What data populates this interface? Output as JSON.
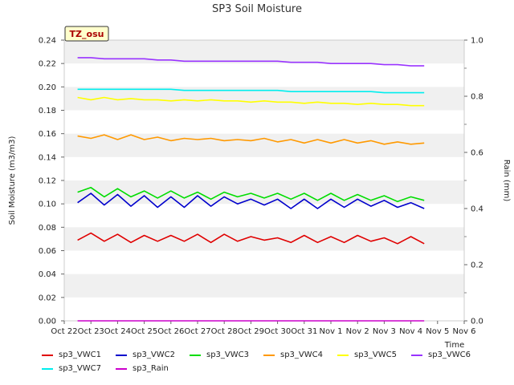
{
  "chart_data": {
    "type": "line",
    "title": "SP3 Soil Moisture",
    "site_label": "TZ_osu",
    "xlabel": "Time",
    "ylabel": "Soil Moisture (m3/m3)",
    "y2label": "Rain (mm)",
    "ylim": [
      0,
      0.24
    ],
    "y2lim": [
      0,
      1.0
    ],
    "xlim": [
      "Oct 22",
      "Nov 6"
    ],
    "grid": true,
    "legend_position": "bottom",
    "x_tick_labels": [
      "Oct 22",
      "Oct 23",
      "Oct 24",
      "Oct 25",
      "Oct 26",
      "Oct 27",
      "Oct 28",
      "Oct 29",
      "Oct 30",
      "Oct 31",
      "Nov 1",
      "Nov 2",
      "Nov 3",
      "Nov 4",
      "Nov 5",
      "Nov 6"
    ],
    "y_tick_labels": [
      "0.00",
      "0.02",
      "0.04",
      "0.06",
      "0.08",
      "0.10",
      "0.12",
      "0.14",
      "0.16",
      "0.18",
      "0.20",
      "0.22",
      "0.24"
    ],
    "y2_tick_labels": [
      "0.0",
      "0.2",
      "0.4",
      "0.6",
      "0.8",
      "1.0"
    ],
    "x": [
      22.5,
      23.0,
      23.5,
      24.0,
      24.5,
      25.0,
      25.5,
      26.0,
      26.5,
      27.0,
      27.5,
      28.0,
      28.5,
      29.0,
      29.5,
      30.0,
      30.5,
      31.0,
      31.5,
      32.0,
      32.5,
      33.0,
      33.5,
      34.0,
      34.5,
      35.0,
      35.5
    ],
    "series": [
      {
        "name": "sp3_VWC1",
        "color": "#e00000",
        "axis": "left",
        "values": [
          0.069,
          0.075,
          0.068,
          0.074,
          0.067,
          0.073,
          0.068,
          0.073,
          0.068,
          0.074,
          0.067,
          0.074,
          0.068,
          0.072,
          0.069,
          0.071,
          0.067,
          0.073,
          0.067,
          0.072,
          0.067,
          0.073,
          0.068,
          0.071,
          0.066,
          0.072,
          0.066
        ]
      },
      {
        "name": "sp3_VWC2",
        "color": "#0000cc",
        "axis": "left",
        "values": [
          0.101,
          0.109,
          0.099,
          0.108,
          0.098,
          0.107,
          0.097,
          0.106,
          0.097,
          0.107,
          0.098,
          0.106,
          0.1,
          0.104,
          0.099,
          0.104,
          0.096,
          0.104,
          0.096,
          0.104,
          0.097,
          0.104,
          0.098,
          0.103,
          0.097,
          0.101,
          0.096
        ]
      },
      {
        "name": "sp3_VWC3",
        "color": "#00dd00",
        "axis": "left",
        "values": [
          0.11,
          0.114,
          0.106,
          0.113,
          0.106,
          0.111,
          0.105,
          0.111,
          0.105,
          0.11,
          0.104,
          0.11,
          0.106,
          0.109,
          0.105,
          0.109,
          0.104,
          0.109,
          0.103,
          0.109,
          0.103,
          0.108,
          0.103,
          0.107,
          0.102,
          0.106,
          0.103
        ]
      },
      {
        "name": "sp3_VWC4",
        "color": "#ff9900",
        "axis": "left",
        "values": [
          0.158,
          0.156,
          0.159,
          0.155,
          0.159,
          0.155,
          0.157,
          0.154,
          0.156,
          0.155,
          0.156,
          0.154,
          0.155,
          0.154,
          0.156,
          0.153,
          0.155,
          0.152,
          0.155,
          0.152,
          0.155,
          0.152,
          0.154,
          0.151,
          0.153,
          0.151,
          0.152
        ]
      },
      {
        "name": "sp3_VWC5",
        "color": "#ffff00",
        "axis": "left",
        "values": [
          0.191,
          0.189,
          0.191,
          0.189,
          0.19,
          0.189,
          0.189,
          0.188,
          0.189,
          0.188,
          0.189,
          0.188,
          0.188,
          0.187,
          0.188,
          0.187,
          0.187,
          0.186,
          0.187,
          0.186,
          0.186,
          0.185,
          0.186,
          0.185,
          0.185,
          0.184,
          0.184
        ]
      },
      {
        "name": "sp3_VWC6",
        "color": "#9933ff",
        "axis": "left",
        "values": [
          0.225,
          0.225,
          0.224,
          0.224,
          0.224,
          0.224,
          0.223,
          0.223,
          0.222,
          0.222,
          0.222,
          0.222,
          0.222,
          0.222,
          0.222,
          0.222,
          0.221,
          0.221,
          0.221,
          0.22,
          0.22,
          0.22,
          0.22,
          0.219,
          0.219,
          0.218,
          0.218
        ]
      },
      {
        "name": "sp3_VWC7",
        "color": "#00eeee",
        "axis": "left",
        "values": [
          0.198,
          0.198,
          0.198,
          0.198,
          0.198,
          0.198,
          0.198,
          0.198,
          0.197,
          0.197,
          0.197,
          0.197,
          0.197,
          0.197,
          0.197,
          0.197,
          0.196,
          0.196,
          0.196,
          0.196,
          0.196,
          0.196,
          0.196,
          0.195,
          0.195,
          0.195,
          0.195
        ]
      },
      {
        "name": "sp3_Rain",
        "color": "#cc00cc",
        "axis": "right",
        "values": [
          0.0,
          0.0,
          0.0,
          0.0,
          0.0,
          0.0,
          0.0,
          0.0,
          0.0,
          0.0,
          0.0,
          0.0,
          0.0,
          0.0,
          0.0,
          0.0,
          0.0,
          0.0,
          0.0,
          0.0,
          0.0,
          0.0,
          0.0,
          0.0,
          0.0,
          0.0,
          0.0
        ]
      }
    ]
  }
}
